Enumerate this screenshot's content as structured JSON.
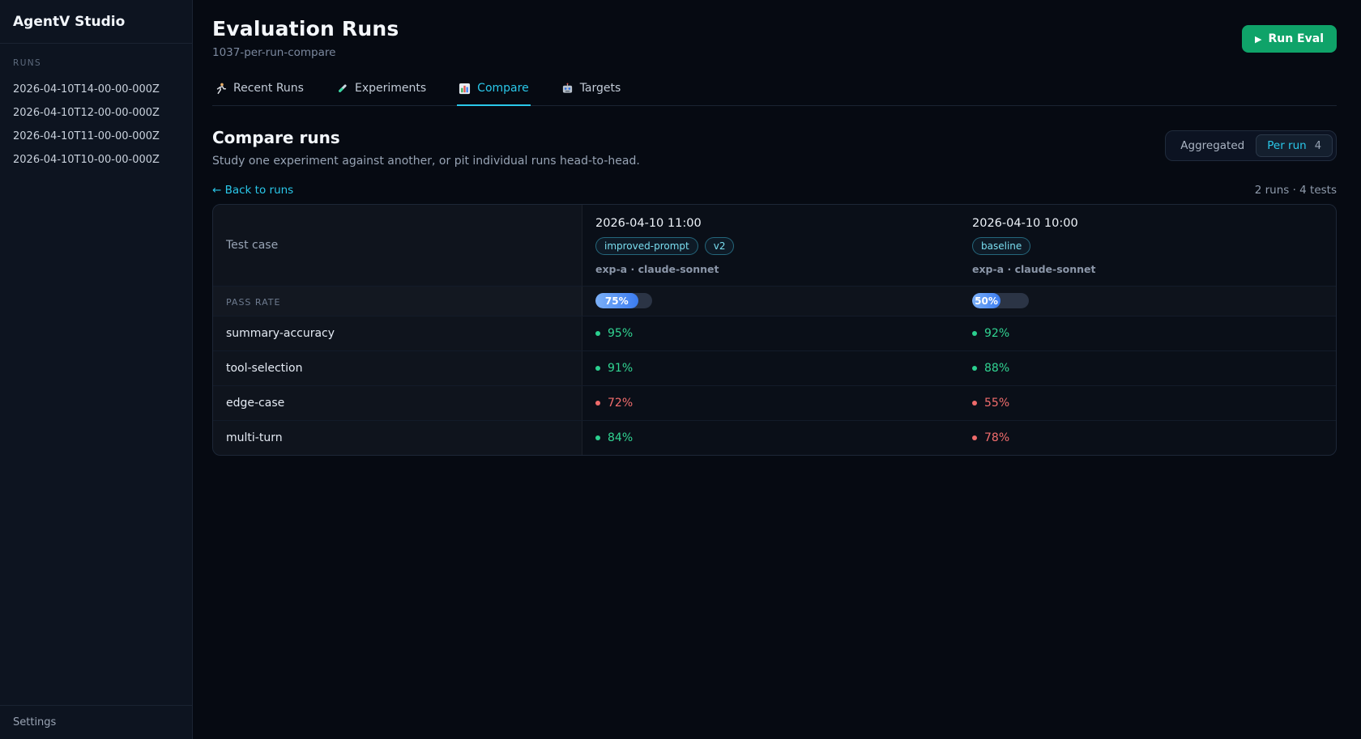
{
  "sidebar": {
    "title": "AgentV Studio",
    "section_label": "RUNS",
    "runs": [
      "2026-04-10T14-00-00-000Z",
      "2026-04-10T12-00-00-000Z",
      "2026-04-10T11-00-00-000Z",
      "2026-04-10T10-00-00-000Z"
    ],
    "settings_label": "Settings"
  },
  "header": {
    "title": "Evaluation Runs",
    "subtitle": "1037-per-run-compare",
    "run_eval_icon": "▶",
    "run_eval_label": "Run Eval"
  },
  "tabs": [
    {
      "label": "Recent Runs",
      "icon": "runner-icon",
      "active": false
    },
    {
      "label": "Experiments",
      "icon": "test-tube-icon",
      "active": false
    },
    {
      "label": "Compare",
      "icon": "bar-chart-icon",
      "active": true
    },
    {
      "label": "Targets",
      "icon": "robot-icon",
      "active": false
    }
  ],
  "compare": {
    "title": "Compare runs",
    "description": "Study one experiment against another, or pit individual runs head-to-head.",
    "toggle": {
      "options": [
        "Aggregated",
        "Per run"
      ],
      "active": "Per run",
      "count": "4"
    },
    "back_link": "← Back to runs",
    "summary": "2 runs · 4 tests"
  },
  "table": {
    "first_column_header": "Test case",
    "pass_rate_label": "PASS RATE",
    "runs": [
      {
        "datetime": "2026-04-10 11:00",
        "badges": [
          "improved-prompt",
          "v2"
        ],
        "meta": "exp-a · claude-sonnet",
        "pass_rate": 75,
        "pass_rate_text": "75%"
      },
      {
        "datetime": "2026-04-10 10:00",
        "badges": [
          "baseline"
        ],
        "meta": "exp-a · claude-sonnet",
        "pass_rate": 50,
        "pass_rate_text": "50%"
      }
    ],
    "rows": [
      {
        "test": "summary-accuracy",
        "values": [
          {
            "text": "95%",
            "status": "pass"
          },
          {
            "text": "92%",
            "status": "pass"
          }
        ]
      },
      {
        "test": "tool-selection",
        "values": [
          {
            "text": "91%",
            "status": "pass"
          },
          {
            "text": "88%",
            "status": "pass"
          }
        ]
      },
      {
        "test": "edge-case",
        "values": [
          {
            "text": "72%",
            "status": "fail"
          },
          {
            "text": "55%",
            "status": "fail"
          }
        ]
      },
      {
        "test": "multi-turn",
        "values": [
          {
            "text": "84%",
            "status": "pass"
          },
          {
            "text": "78%",
            "status": "fail"
          }
        ]
      }
    ]
  },
  "colors": {
    "accent_cyan": "#2ac8ea",
    "run_eval_green": "#0fa369",
    "pass_green": "#31d492",
    "fail_red": "#f26d6d",
    "bar_blue": "#3b7cf0"
  }
}
